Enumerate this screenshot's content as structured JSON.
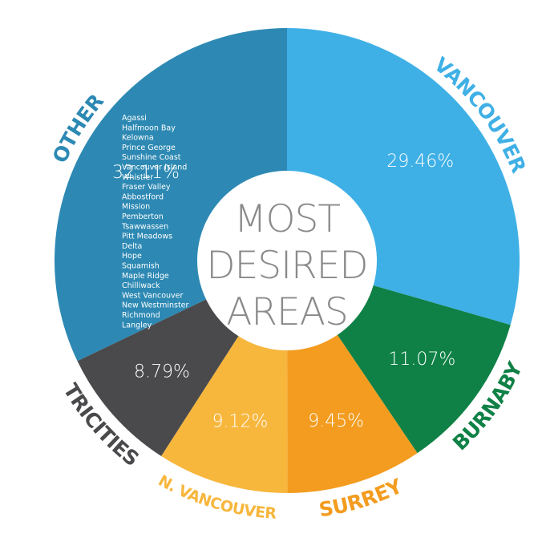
{
  "chart_data": {
    "type": "pie",
    "title": "MOST DESIRED AREAS",
    "title_lines": [
      "MOST",
      "DESIRED",
      "AREAS"
    ],
    "slices": [
      {
        "label": "VANCOUVER",
        "value": 29.46,
        "value_label": "29.46%",
        "color": "#3fb0e6",
        "label_color": "#3fb0e6"
      },
      {
        "label": "BURNABY",
        "value": 11.07,
        "value_label": "11.07%",
        "color": "#0f8146",
        "label_color": "#0f8146"
      },
      {
        "label": "SURREY",
        "value": 9.45,
        "value_label": "9.45%",
        "color": "#f39c1f",
        "label_color": "#f39c1f"
      },
      {
        "label": "N. VANCOUVER",
        "value": 9.12,
        "value_label": "9.12%",
        "color": "#f7b63c",
        "label_color": "#f7b63c"
      },
      {
        "label": "TRICITIES",
        "value": 8.79,
        "value_label": "8.79%",
        "color": "#4a4a4c",
        "label_color": "#4a4a4c"
      },
      {
        "label": "OTHER",
        "value": 32.11,
        "value_label": "32.11%",
        "color": "#2d89b3",
        "label_color": "#2d89b3"
      }
    ],
    "other_areas": [
      "Agassi",
      "Halfmoon Bay",
      "Kelowna",
      "Prince George",
      "Sunshine Coast",
      "Vancouver Island",
      "Whistler",
      "Fraser Valley",
      "Abbostford",
      "Mission",
      "Pemberton",
      "Tsawwassen",
      "Pitt Meadows",
      "Delta",
      "Hope",
      "Squamish",
      "Maple Ridge",
      "Chilliwack",
      "West Vancouver",
      "New Westminster",
      "Richmond",
      "Langley"
    ]
  }
}
